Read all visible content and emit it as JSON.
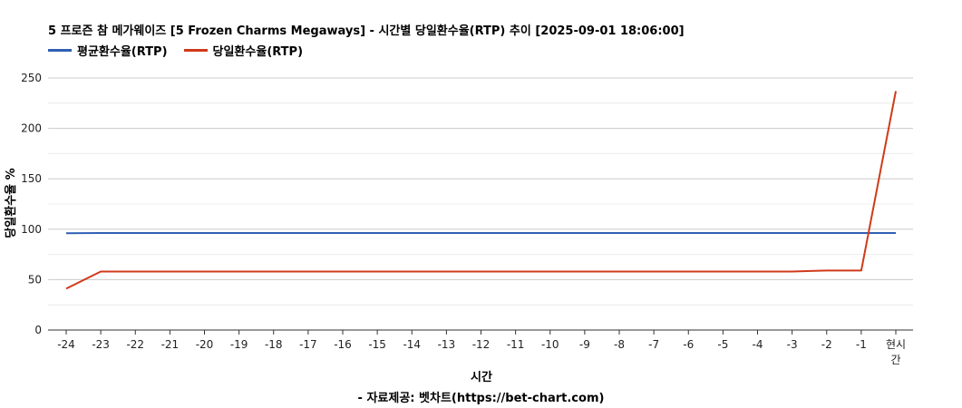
{
  "chart_data": {
    "type": "line",
    "title": "5 프로즌 참 메가웨이즈 [5 Frozen Charms Megaways] - 시간별 당일환수율(RTP) 추이 [2025-09-01 18:06:00]",
    "xlabel": "시간",
    "ylabel": "당일환수율 %",
    "source": "- 자료제공: 벳차트(https://bet-chart.com)",
    "categories": [
      "-24",
      "-23",
      "-22",
      "-21",
      "-20",
      "-19",
      "-18",
      "-17",
      "-16",
      "-15",
      "-14",
      "-13",
      "-12",
      "-11",
      "-10",
      "-9",
      "-8",
      "-7",
      "-6",
      "-5",
      "-4",
      "-3",
      "-2",
      "-1",
      "현시간"
    ],
    "ylim": [
      0,
      250
    ],
    "yticks": [
      0,
      50,
      100,
      150,
      200,
      250
    ],
    "grid": true,
    "legend_position": "top-left",
    "series": [
      {
        "name": "평균환수율(RTP)",
        "color": "#2f5fb3",
        "values": [
          96,
          96.2,
          96.2,
          96.2,
          96.2,
          96.2,
          96.2,
          96.2,
          96.2,
          96.2,
          96.2,
          96.2,
          96.2,
          96.2,
          96.2,
          96.2,
          96.2,
          96.2,
          96.2,
          96.2,
          96.2,
          96.2,
          96.2,
          96.2,
          96.2
        ]
      },
      {
        "name": "당일환수율(RTP)",
        "color": "#d03a1a",
        "values": [
          41,
          58,
          58,
          58,
          58,
          58,
          58,
          58,
          58,
          58,
          58,
          58,
          58,
          58,
          58,
          58,
          58,
          58,
          58,
          58,
          58,
          58,
          59,
          59,
          237
        ]
      }
    ]
  }
}
